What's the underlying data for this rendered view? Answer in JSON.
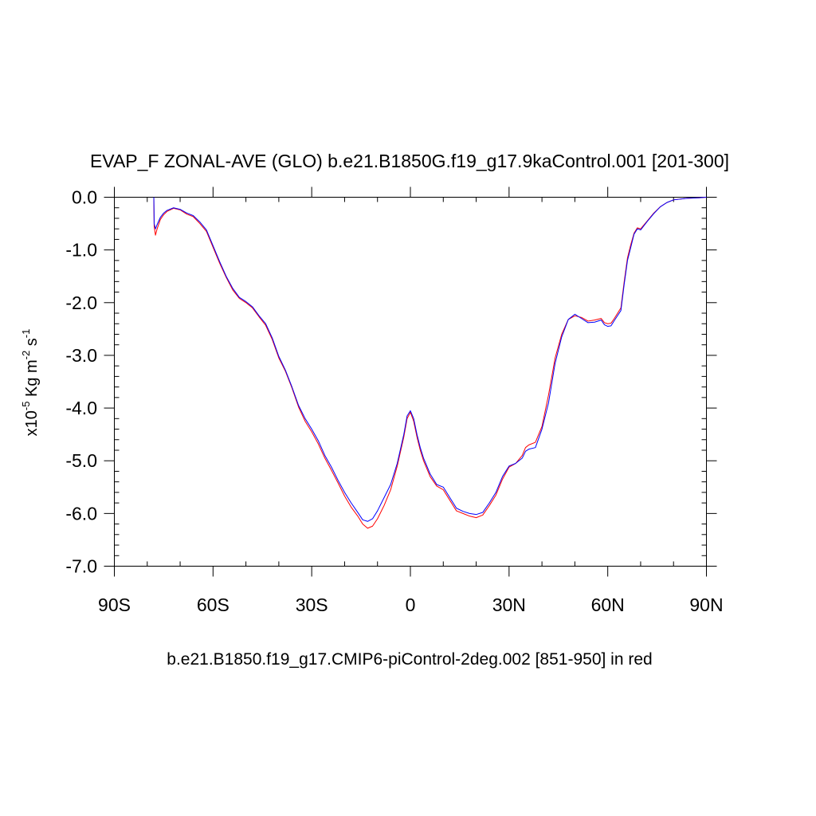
{
  "chart_data": {
    "type": "line",
    "title": "EVAP_F ZONAL-AVE (GLO) b.e21.B1850G.f19_g17.9kaControl.001 [201-300]",
    "ylabel": {
      "base": "x10",
      "exp1": "-5",
      "mid": " Kg m",
      "exp2": "-2",
      "end": " s",
      "exp3": "-1"
    },
    "xlabel": "b.e21.B1850.f19_g17.CMIP6-piControl-2deg.002 [851-950] in red",
    "xlim": [
      -90,
      90
    ],
    "ylim": [
      -7.0,
      0.0
    ],
    "grid": false,
    "x_ticks": [
      {
        "value": -90,
        "label": "90S"
      },
      {
        "value": -60,
        "label": "60S"
      },
      {
        "value": -30,
        "label": "30S"
      },
      {
        "value": 0,
        "label": "0"
      },
      {
        "value": 30,
        "label": "30N"
      },
      {
        "value": 60,
        "label": "60N"
      },
      {
        "value": 90,
        "label": "90N"
      }
    ],
    "y_ticks": [
      {
        "value": 0.0,
        "label": "0.0"
      },
      {
        "value": -1.0,
        "label": "-1.0"
      },
      {
        "value": -2.0,
        "label": "-2.0"
      },
      {
        "value": -3.0,
        "label": "-3.0"
      },
      {
        "value": -4.0,
        "label": "-4.0"
      },
      {
        "value": -5.0,
        "label": "-5.0"
      },
      {
        "value": -6.0,
        "label": "-6.0"
      },
      {
        "value": -7.0,
        "label": "-7.0"
      }
    ],
    "series": [
      {
        "color": "#ff0000",
        "points": [
          [
            -78,
            0.0
          ],
          [
            -77.9,
            -0.55
          ],
          [
            -77.5,
            -0.72
          ],
          [
            -77,
            -0.6
          ],
          [
            -76,
            -0.42
          ],
          [
            -75,
            -0.33
          ],
          [
            -74,
            -0.27
          ],
          [
            -72,
            -0.21
          ],
          [
            -70,
            -0.24
          ],
          [
            -68,
            -0.32
          ],
          [
            -66,
            -0.37
          ],
          [
            -64,
            -0.5
          ],
          [
            -62,
            -0.65
          ],
          [
            -60,
            -0.95
          ],
          [
            -58,
            -1.25
          ],
          [
            -56,
            -1.52
          ],
          [
            -54,
            -1.76
          ],
          [
            -52,
            -1.92
          ],
          [
            -50,
            -2.0
          ],
          [
            -48,
            -2.1
          ],
          [
            -46,
            -2.27
          ],
          [
            -44,
            -2.43
          ],
          [
            -42,
            -2.7
          ],
          [
            -40,
            -3.05
          ],
          [
            -38,
            -3.3
          ],
          [
            -36,
            -3.62
          ],
          [
            -34,
            -3.98
          ],
          [
            -32,
            -4.25
          ],
          [
            -30,
            -4.45
          ],
          [
            -28,
            -4.68
          ],
          [
            -26,
            -4.95
          ],
          [
            -24,
            -5.18
          ],
          [
            -22,
            -5.42
          ],
          [
            -20,
            -5.67
          ],
          [
            -18,
            -5.88
          ],
          [
            -16,
            -6.05
          ],
          [
            -14.5,
            -6.2
          ],
          [
            -13,
            -6.28
          ],
          [
            -11.5,
            -6.24
          ],
          [
            -10,
            -6.1
          ],
          [
            -8,
            -5.85
          ],
          [
            -6,
            -5.55
          ],
          [
            -4,
            -5.1
          ],
          [
            -2,
            -4.55
          ],
          [
            -1,
            -4.2
          ],
          [
            0,
            -4.08
          ],
          [
            1,
            -4.25
          ],
          [
            2,
            -4.55
          ],
          [
            3,
            -4.8
          ],
          [
            4,
            -5.0
          ],
          [
            6,
            -5.3
          ],
          [
            8,
            -5.48
          ],
          [
            10,
            -5.55
          ],
          [
            12,
            -5.75
          ],
          [
            14,
            -5.95
          ],
          [
            16,
            -6.0
          ],
          [
            18,
            -6.05
          ],
          [
            20,
            -6.08
          ],
          [
            22,
            -6.03
          ],
          [
            24,
            -5.85
          ],
          [
            26,
            -5.65
          ],
          [
            28,
            -5.35
          ],
          [
            30,
            -5.12
          ],
          [
            32,
            -5.05
          ],
          [
            34,
            -4.9
          ],
          [
            35,
            -4.75
          ],
          [
            36,
            -4.7
          ],
          [
            38,
            -4.65
          ],
          [
            40,
            -4.35
          ],
          [
            42,
            -3.75
          ],
          [
            44,
            -3.05
          ],
          [
            46,
            -2.6
          ],
          [
            48,
            -2.32
          ],
          [
            50,
            -2.25
          ],
          [
            52,
            -2.28
          ],
          [
            54,
            -2.35
          ],
          [
            56,
            -2.33
          ],
          [
            58,
            -2.3
          ],
          [
            59,
            -2.38
          ],
          [
            60,
            -2.4
          ],
          [
            61,
            -2.39
          ],
          [
            62,
            -2.3
          ],
          [
            64,
            -2.1
          ],
          [
            65,
            -1.6
          ],
          [
            66,
            -1.15
          ],
          [
            67,
            -0.9
          ],
          [
            68,
            -0.68
          ],
          [
            69,
            -0.58
          ],
          [
            70,
            -0.6
          ],
          [
            72,
            -0.45
          ],
          [
            74,
            -0.3
          ],
          [
            76,
            -0.18
          ],
          [
            78,
            -0.1
          ],
          [
            80,
            -0.05
          ],
          [
            84,
            -0.02
          ],
          [
            88,
            -0.01
          ],
          [
            90,
            0.0
          ]
        ]
      },
      {
        "color": "#0000ff",
        "points": [
          [
            -78,
            0.0
          ],
          [
            -77.9,
            -0.5
          ],
          [
            -77.5,
            -0.6
          ],
          [
            -77,
            -0.52
          ],
          [
            -76,
            -0.38
          ],
          [
            -75,
            -0.3
          ],
          [
            -74,
            -0.25
          ],
          [
            -72,
            -0.2
          ],
          [
            -70,
            -0.23
          ],
          [
            -68,
            -0.3
          ],
          [
            -66,
            -0.35
          ],
          [
            -64,
            -0.47
          ],
          [
            -62,
            -0.62
          ],
          [
            -60,
            -0.92
          ],
          [
            -58,
            -1.22
          ],
          [
            -56,
            -1.5
          ],
          [
            -54,
            -1.73
          ],
          [
            -52,
            -1.9
          ],
          [
            -50,
            -1.98
          ],
          [
            -48,
            -2.08
          ],
          [
            -46,
            -2.25
          ],
          [
            -44,
            -2.4
          ],
          [
            -42,
            -2.67
          ],
          [
            -40,
            -3.02
          ],
          [
            -38,
            -3.28
          ],
          [
            -36,
            -3.6
          ],
          [
            -34,
            -3.95
          ],
          [
            -32,
            -4.2
          ],
          [
            -30,
            -4.4
          ],
          [
            -28,
            -4.62
          ],
          [
            -26,
            -4.9
          ],
          [
            -24,
            -5.12
          ],
          [
            -22,
            -5.37
          ],
          [
            -20,
            -5.6
          ],
          [
            -18,
            -5.8
          ],
          [
            -16,
            -5.98
          ],
          [
            -14.5,
            -6.12
          ],
          [
            -13,
            -6.15
          ],
          [
            -11.5,
            -6.1
          ],
          [
            -10,
            -5.95
          ],
          [
            -8,
            -5.7
          ],
          [
            -6,
            -5.45
          ],
          [
            -4,
            -5.05
          ],
          [
            -2,
            -4.5
          ],
          [
            -1,
            -4.15
          ],
          [
            0,
            -4.05
          ],
          [
            1,
            -4.2
          ],
          [
            2,
            -4.5
          ],
          [
            3,
            -4.75
          ],
          [
            4,
            -4.95
          ],
          [
            6,
            -5.25
          ],
          [
            8,
            -5.45
          ],
          [
            10,
            -5.5
          ],
          [
            12,
            -5.7
          ],
          [
            14,
            -5.9
          ],
          [
            16,
            -5.96
          ],
          [
            18,
            -6.0
          ],
          [
            20,
            -6.02
          ],
          [
            22,
            -5.98
          ],
          [
            24,
            -5.8
          ],
          [
            26,
            -5.6
          ],
          [
            28,
            -5.3
          ],
          [
            30,
            -5.1
          ],
          [
            32,
            -5.05
          ],
          [
            34,
            -4.95
          ],
          [
            35,
            -4.82
          ],
          [
            36,
            -4.78
          ],
          [
            38,
            -4.75
          ],
          [
            40,
            -4.4
          ],
          [
            42,
            -3.9
          ],
          [
            44,
            -3.15
          ],
          [
            46,
            -2.65
          ],
          [
            48,
            -2.32
          ],
          [
            50,
            -2.22
          ],
          [
            52,
            -2.3
          ],
          [
            54,
            -2.38
          ],
          [
            56,
            -2.37
          ],
          [
            58,
            -2.33
          ],
          [
            59,
            -2.42
          ],
          [
            60,
            -2.45
          ],
          [
            61,
            -2.44
          ],
          [
            62,
            -2.34
          ],
          [
            64,
            -2.15
          ],
          [
            65,
            -1.65
          ],
          [
            66,
            -1.2
          ],
          [
            67,
            -0.95
          ],
          [
            68,
            -0.7
          ],
          [
            69,
            -0.6
          ],
          [
            70,
            -0.62
          ],
          [
            72,
            -0.46
          ],
          [
            74,
            -0.31
          ],
          [
            76,
            -0.18
          ],
          [
            78,
            -0.1
          ],
          [
            80,
            -0.05
          ],
          [
            84,
            -0.02
          ],
          [
            88,
            -0.01
          ],
          [
            90,
            0.0
          ]
        ]
      }
    ]
  }
}
